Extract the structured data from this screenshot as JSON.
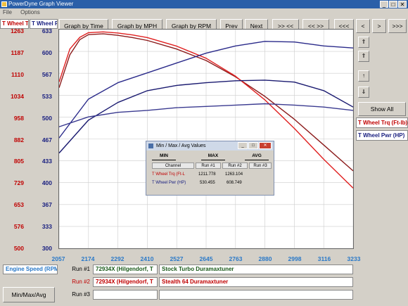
{
  "window": {
    "title": "PowerDyne Graph Viewer",
    "close_glyph": "✕",
    "minimize_glyph": "_",
    "maximize_glyph": "□"
  },
  "menu": [
    "File",
    "Options"
  ],
  "channels": {
    "torque_label": "T Wheel Trq (Ft-lb)",
    "power_label": "T Wheel Pwr (HP)",
    "torque_short": "T Wheel T",
    "power_short": "T Wheel P"
  },
  "toolbar": {
    "graph_by_time": "Graph by Time",
    "graph_by_mph": "Graph by MPH",
    "graph_by_rpm": "Graph by RPM",
    "prev": "Prev",
    "next": "Next",
    "zoom_in": ">> <<",
    "zoom_out": "<< >>",
    "shift_far_left": "<<<",
    "shift_left": "<",
    "shift_right": ">",
    "shift_far_right": ">>>"
  },
  "side": {
    "up_fast": "⇑",
    "up": "↑",
    "down": "↓",
    "down_fast": "⇓",
    "show_all": "Show All"
  },
  "legend": {
    "torque": "T Wheel Trq (Ft-lb)",
    "power": "T Wheel Pwr (HP)"
  },
  "axes": {
    "torque_ticks": [
      "1263",
      "1187",
      "1110",
      "1034",
      "958",
      "882",
      "805",
      "729",
      "653",
      "576",
      "500"
    ],
    "power_ticks": [
      "633",
      "600",
      "567",
      "533",
      "500",
      "467",
      "433",
      "400",
      "367",
      "333",
      "300"
    ],
    "x_ticks": [
      "2057",
      "2174",
      "2292",
      "2410",
      "2527",
      "2645",
      "2763",
      "2880",
      "2998",
      "3116",
      "3233"
    ],
    "x_axis_label": "Engine Speed (RPM)"
  },
  "chart_data": {
    "type": "line",
    "xlabel": "Engine Speed (RPM)",
    "xlim": [
      2057,
      3233
    ],
    "ylim_left": [
      500,
      1263
    ],
    "ylim_right": [
      300,
      633
    ],
    "grid": true,
    "series": [
      {
        "name": "Run #1 T Wheel Trq (Ft-lb)",
        "axis": "left",
        "color": "#8b1a1a",
        "x": [
          2057,
          2100,
          2140,
          2174,
          2233,
          2292,
          2351,
          2410,
          2527,
          2645,
          2763,
          2880,
          2998,
          3116,
          3233
        ],
        "y": [
          1060,
          1175,
          1228,
          1245,
          1248,
          1243,
          1235,
          1225,
          1195,
          1155,
          1098,
          1030,
          950,
          860,
          770
        ]
      },
      {
        "name": "Run #2 T Wheel Trq (Ft-lb)",
        "axis": "left",
        "color": "#e02020",
        "x": [
          2057,
          2100,
          2140,
          2174,
          2233,
          2292,
          2351,
          2410,
          2527,
          2645,
          2763,
          2880,
          2998,
          3116,
          3233
        ],
        "y": [
          1080,
          1195,
          1236,
          1252,
          1255,
          1251,
          1244,
          1235,
          1205,
          1163,
          1100,
          1018,
          918,
          810,
          710
        ]
      },
      {
        "name": "Run #1 T Wheel Pwr (HP)",
        "axis": "right",
        "color": "#1a1a70",
        "x": [
          2057,
          2174,
          2292,
          2410,
          2527,
          2645,
          2763,
          2880,
          2998,
          3116,
          3233
        ],
        "y": [
          445,
          495,
          522,
          540,
          548,
          552,
          555,
          556,
          553,
          540,
          515
        ]
      },
      {
        "name": "Run #2 T Wheel Pwr (HP)",
        "axis": "right",
        "color": "#2a2a8a",
        "x": [
          2057,
          2174,
          2292,
          2410,
          2527,
          2645,
          2763,
          2880,
          2998,
          3116,
          3233
        ],
        "y": [
          468,
          527,
          552,
          567,
          582,
          597,
          608,
          615,
          614,
          608,
          605
        ]
      },
      {
        "name": "Run #3 T Wheel Pwr (HP)",
        "axis": "right",
        "color": "#3a3a90",
        "x": [
          2057,
          2174,
          2292,
          2410,
          2527,
          2645,
          2763,
          2880,
          2998,
          3116,
          3233
        ],
        "y": [
          485,
          500,
          507,
          510,
          514,
          516,
          518,
          520,
          518,
          515,
          510
        ]
      }
    ]
  },
  "runs": [
    {
      "label": "Run #1",
      "file": "72934X (Hilgendorf, T",
      "desc": "Stock Turbo Duramaxtuner",
      "color": "#1a5a1a"
    },
    {
      "label": "Run #2",
      "file": "72934X (Hilgendorf, T",
      "desc": "Stealth 64 Duramaxtuner",
      "color": "#c00000"
    },
    {
      "label": "Run #3",
      "file": "",
      "desc": "",
      "color": "#000000"
    }
  ],
  "bottom": {
    "x_channel": "Engine Speed (RPM)",
    "minmax_button": "Min/Max/Avg"
  },
  "dialog": {
    "title": "Min / Max / Avg Values",
    "tabs": [
      "MIN",
      "MAX",
      "AVG"
    ],
    "headers": [
      "Channel",
      "Run #1",
      "Run #2",
      "Run #3"
    ],
    "rows": [
      {
        "channel": "T Wheel Trq (Ft-L",
        "run1": "1211.778",
        "run2": "1263.104",
        "run3": "",
        "color": "#c00000"
      },
      {
        "channel": "T Wheel Pwr (HP)",
        "run1": "530.455",
        "run2": "608.749",
        "run3": "",
        "color": "#1a2080"
      }
    ]
  }
}
